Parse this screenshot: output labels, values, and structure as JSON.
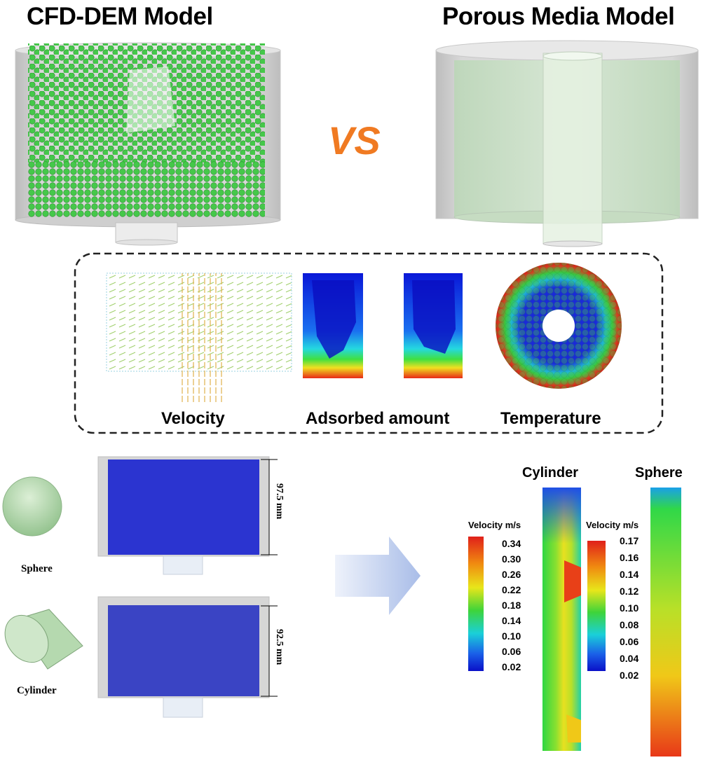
{
  "header": {
    "left_title": "CFD-DEM Model",
    "vs": "VS",
    "right_title": "Porous Media Model"
  },
  "results_panel": {
    "labels": [
      "Velocity",
      "Adsorbed amount",
      "Temperature"
    ]
  },
  "particles": {
    "sphere_label": "Sphere",
    "cylinder_label": "Cylinder",
    "sphere_bed_height": "97.5 mm",
    "cylinder_bed_height": "92.5 mm"
  },
  "velocity_profiles": {
    "cylinder": {
      "title": "Cylinder",
      "legend_title": "Velocity m/s",
      "ticks": [
        "0.34",
        "0.30",
        "0.26",
        "0.22",
        "0.18",
        "0.14",
        "0.10",
        "0.06",
        "0.02"
      ]
    },
    "sphere": {
      "title": "Sphere",
      "legend_title": "Velocity m/s",
      "ticks": [
        "0.17",
        "0.16",
        "0.14",
        "0.12",
        "0.10",
        "0.08",
        "0.06",
        "0.04",
        "0.02"
      ]
    }
  },
  "colors": {
    "vs": "#f07a22",
    "particle_green": "#38c23c",
    "bed_blue": "#2630c8",
    "arrow": "#b9c8ec"
  }
}
